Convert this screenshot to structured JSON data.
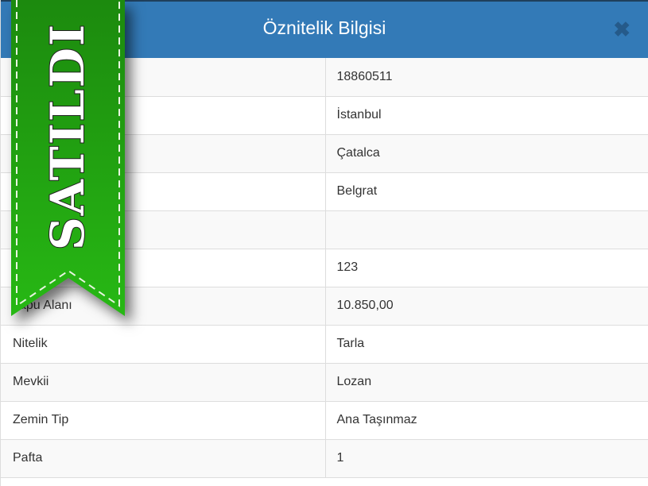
{
  "dialog": {
    "title": "Öznitelik Bilgisi",
    "close_icon": "close-icon"
  },
  "ribbon": {
    "text": "SATILDI",
    "color": "#22a812"
  },
  "rows": [
    {
      "label": "",
      "value": "18860511"
    },
    {
      "label": "",
      "value": "İstanbul"
    },
    {
      "label": "",
      "value": "Çatalca"
    },
    {
      "label": "",
      "value": "Belgrat"
    },
    {
      "label": "",
      "value": ""
    },
    {
      "label": "",
      "value": "123"
    },
    {
      "label": "Tapu Alanı",
      "value": "10.850,00"
    },
    {
      "label": "Nitelik",
      "value": "Tarla"
    },
    {
      "label": "Mevkii",
      "value": "Lozan"
    },
    {
      "label": "Zemin Tip",
      "value": "Ana Taşınmaz"
    },
    {
      "label": "Pafta",
      "value": "1"
    }
  ]
}
